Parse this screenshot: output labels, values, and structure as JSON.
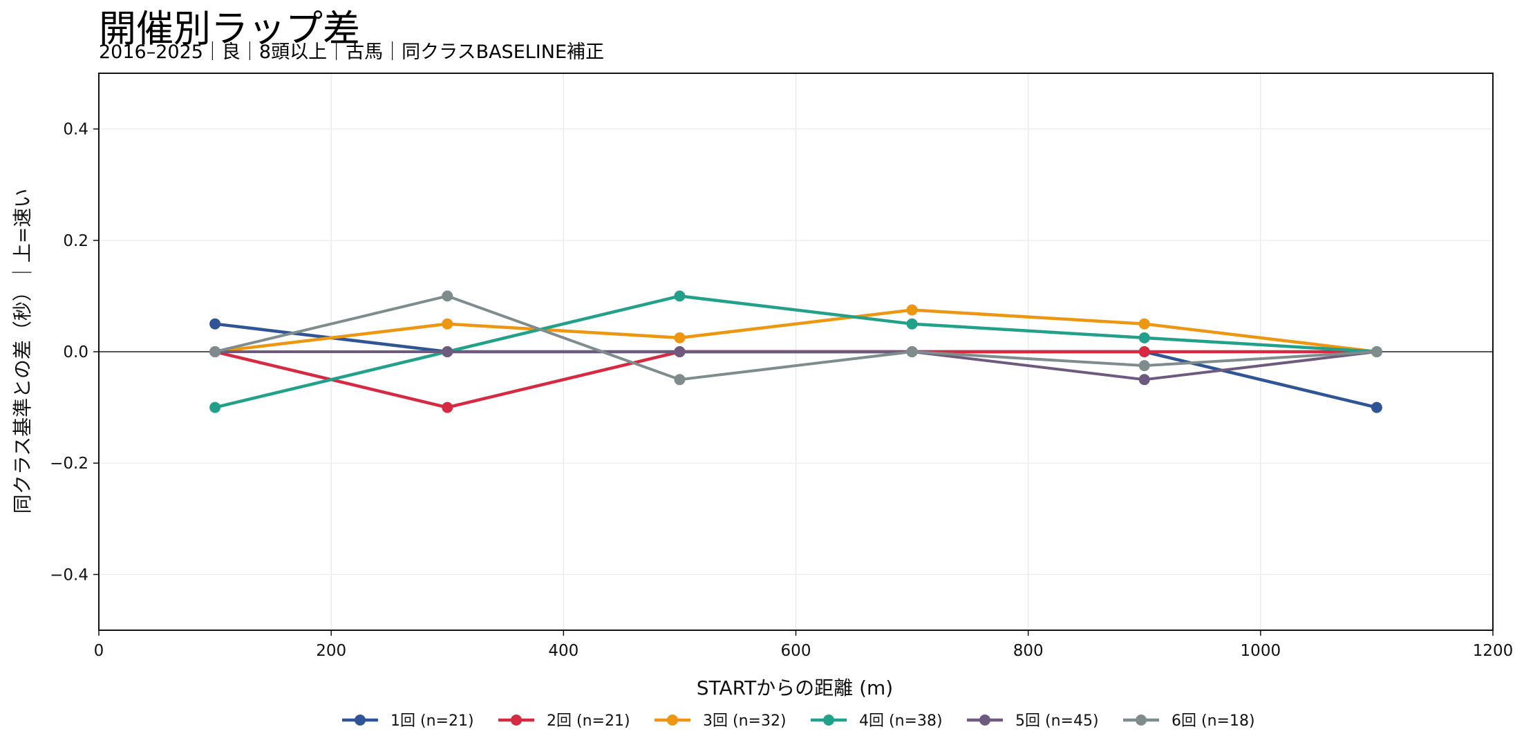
{
  "chart_data": {
    "type": "line",
    "title": "開催別ラップ差",
    "subtitle": "2016–2025｜良｜8頭以上｜古馬｜同クラスBASELINE補正",
    "xlabel": "STARTからの距離 (m)",
    "ylabel": "同クラス基準との差（秒）｜上=速い",
    "xlim": [
      0,
      1200
    ],
    "ylim": [
      -0.5,
      0.5
    ],
    "xticks": [
      "0",
      "200",
      "400",
      "600",
      "800",
      "1000",
      "1200"
    ],
    "yticks": [
      "−0.4",
      "−0.2",
      "0.0",
      "0.2",
      "0.4"
    ],
    "grid": true,
    "legend_position": "bottom",
    "x": [
      100,
      300,
      500,
      700,
      900,
      1100
    ],
    "series": [
      {
        "name": "1回 (n=21)",
        "color": "#2f5597",
        "values": [
          0.05,
          0.0,
          0.0,
          0.0,
          0.0,
          -0.1
        ]
      },
      {
        "name": "2回 (n=21)",
        "color": "#d62a42",
        "values": [
          0.0,
          -0.1,
          0.0,
          0.0,
          0.0,
          0.0
        ]
      },
      {
        "name": "3回 (n=32)",
        "color": "#ec9611",
        "values": [
          0.0,
          0.05,
          0.025,
          0.075,
          0.05,
          0.0
        ]
      },
      {
        "name": "4回 (n=38)",
        "color": "#23a08a",
        "values": [
          -0.1,
          0.0,
          0.1,
          0.05,
          0.025,
          0.0
        ]
      },
      {
        "name": "5回 (n=45)",
        "color": "#6e5a7e",
        "values": [
          0.0,
          0.0,
          0.0,
          0.0,
          -0.05,
          0.0
        ]
      },
      {
        "name": "6回 (n=18)",
        "color": "#7f8c8d",
        "values": [
          0.0,
          0.1,
          -0.05,
          0.0,
          -0.025,
          0.0
        ]
      }
    ]
  }
}
